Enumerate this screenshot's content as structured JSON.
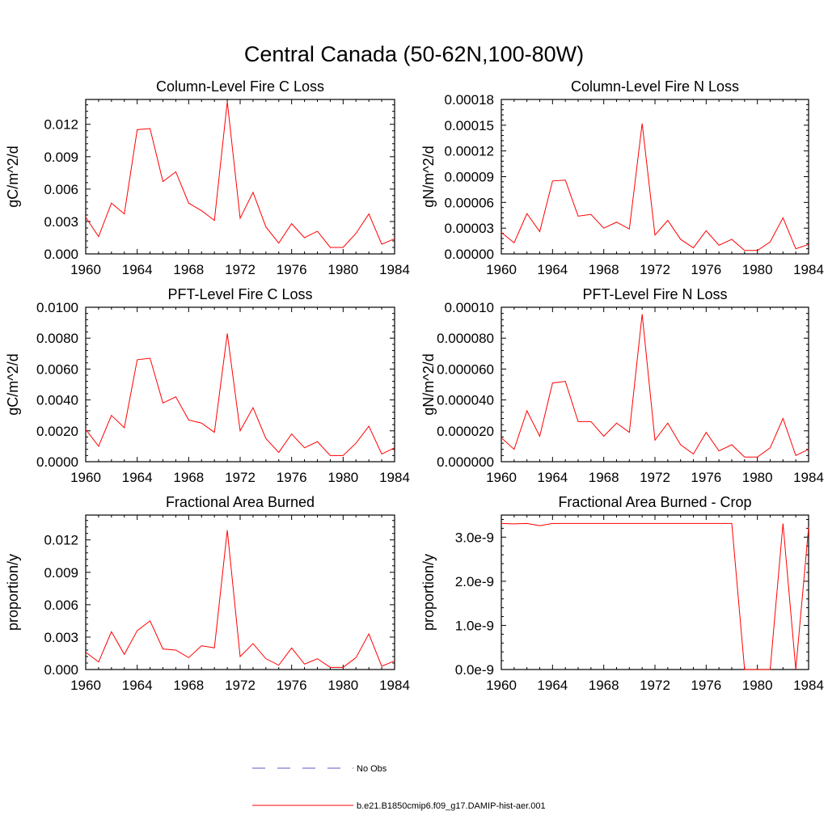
{
  "title": "Central Canada (50-62N,100-80W)",
  "colors": {
    "model": "#ff0000",
    "obs": "#5a5ac8",
    "frame": "#000000"
  },
  "legend": {
    "position": "bottom-center",
    "entries": [
      {
        "label": "No Obs",
        "style": "dashed",
        "color": "#5a5ac8"
      },
      {
        "label": "b.e21.B1850cmip6.f09_g17.DAMIP-hist-aer.001",
        "style": "solid",
        "color": "#ff0000"
      }
    ]
  },
  "chart_data": [
    {
      "type": "line",
      "title": "Column-Level Fire C Loss",
      "ylabel": "gC/m^2/d",
      "xlim": [
        1960,
        1984
      ],
      "ylim": [
        0,
        0.0143
      ],
      "xticks": [
        "1960",
        "1964",
        "1968",
        "1972",
        "1976",
        "1980",
        "1984"
      ],
      "yticks": [
        {
          "value": 0,
          "label": "0.000"
        },
        {
          "value": 0.003,
          "label": "0.003"
        },
        {
          "value": 0.006,
          "label": "0.006"
        },
        {
          "value": 0.009,
          "label": "0.009"
        },
        {
          "value": 0.012,
          "label": "0.012"
        }
      ],
      "x": [
        1960,
        1961,
        1962,
        1963,
        1964,
        1965,
        1966,
        1967,
        1968,
        1969,
        1970,
        1971,
        1972,
        1973,
        1974,
        1975,
        1976,
        1977,
        1978,
        1979,
        1980,
        1981,
        1982,
        1983,
        1984
      ],
      "series": [
        {
          "values": [
            0.0034,
            0.0016,
            0.0047,
            0.0037,
            0.0115,
            0.0116,
            0.0067,
            0.0076,
            0.0047,
            0.004,
            0.0031,
            0.0141,
            0.0033,
            0.0057,
            0.0025,
            0.001,
            0.0028,
            0.0015,
            0.0021,
            0.0006,
            0.0006,
            0.0019,
            0.0037,
            0.0009,
            0.0014
          ]
        }
      ]
    },
    {
      "type": "line",
      "title": "Column-Level Fire N Loss",
      "ylabel": "gN/m^2/d",
      "xlim": [
        1960,
        1984
      ],
      "ylim": [
        0,
        0.00018
      ],
      "xticks": [
        "1960",
        "1964",
        "1968",
        "1972",
        "1976",
        "1980",
        "1984"
      ],
      "yticks": [
        {
          "value": 0,
          "label": "0.00000"
        },
        {
          "value": 3e-05,
          "label": "0.00003"
        },
        {
          "value": 6e-05,
          "label": "0.00006"
        },
        {
          "value": 9e-05,
          "label": "0.00009"
        },
        {
          "value": 0.00012,
          "label": "0.00012"
        },
        {
          "value": 0.00015,
          "label": "0.00015"
        },
        {
          "value": 0.00018,
          "label": "0.00018"
        }
      ],
      "x": [
        1960,
        1961,
        1962,
        1963,
        1964,
        1965,
        1966,
        1967,
        1968,
        1969,
        1970,
        1971,
        1972,
        1973,
        1974,
        1975,
        1976,
        1977,
        1978,
        1979,
        1980,
        1981,
        1982,
        1983,
        1984
      ],
      "series": [
        {
          "values": [
            2.5e-05,
            1.3e-05,
            4.7e-05,
            2.6e-05,
            8.5e-05,
            8.6e-05,
            4.4e-05,
            4.6e-05,
            3e-05,
            3.7e-05,
            2.9e-05,
            0.000152,
            2.2e-05,
            3.9e-05,
            1.7e-05,
            7e-06,
            2.7e-05,
            1e-05,
            1.7e-05,
            4e-06,
            4e-06,
            1.4e-05,
            4.2e-05,
            6e-06,
            1.1e-05
          ]
        }
      ]
    },
    {
      "type": "line",
      "title": "PFT-Level Fire C Loss",
      "ylabel": "gC/m^2/d",
      "xlim": [
        1960,
        1984
      ],
      "ylim": [
        0,
        0.01
      ],
      "xticks": [
        "1960",
        "1964",
        "1968",
        "1972",
        "1976",
        "1980",
        "1984"
      ],
      "yticks": [
        {
          "value": 0,
          "label": "0.0000"
        },
        {
          "value": 0.002,
          "label": "0.0020"
        },
        {
          "value": 0.004,
          "label": "0.0040"
        },
        {
          "value": 0.006,
          "label": "0.0060"
        },
        {
          "value": 0.008,
          "label": "0.0080"
        },
        {
          "value": 0.01,
          "label": "0.0100"
        }
      ],
      "x": [
        1960,
        1961,
        1962,
        1963,
        1964,
        1965,
        1966,
        1967,
        1968,
        1969,
        1970,
        1971,
        1972,
        1973,
        1974,
        1975,
        1976,
        1977,
        1978,
        1979,
        1980,
        1981,
        1982,
        1983,
        1984
      ],
      "series": [
        {
          "values": [
            0.0021,
            0.001,
            0.003,
            0.0022,
            0.0066,
            0.0067,
            0.0038,
            0.0042,
            0.0027,
            0.0025,
            0.0019,
            0.0083,
            0.002,
            0.0035,
            0.0015,
            0.0006,
            0.0018,
            0.0009,
            0.0013,
            0.0004,
            0.0004,
            0.0012,
            0.0023,
            0.0005,
            0.0009
          ]
        }
      ]
    },
    {
      "type": "line",
      "title": "PFT-Level Fire N Loss",
      "ylabel": "gN/m^2/d",
      "xlim": [
        1960,
        1984
      ],
      "ylim": [
        0,
        0.0001
      ],
      "xticks": [
        "1960",
        "1964",
        "1968",
        "1972",
        "1976",
        "1980",
        "1984"
      ],
      "yticks": [
        {
          "value": 0,
          "label": "0.000000"
        },
        {
          "value": 2e-05,
          "label": "0.000020"
        },
        {
          "value": 4e-05,
          "label": "0.000040"
        },
        {
          "value": 6e-05,
          "label": "0.000060"
        },
        {
          "value": 8e-05,
          "label": "0.000080"
        },
        {
          "value": 0.0001,
          "label": "0.00010"
        }
      ],
      "x": [
        1960,
        1961,
        1962,
        1963,
        1964,
        1965,
        1966,
        1967,
        1968,
        1969,
        1970,
        1971,
        1972,
        1973,
        1974,
        1975,
        1976,
        1977,
        1978,
        1979,
        1980,
        1981,
        1982,
        1983,
        1984
      ],
      "series": [
        {
          "values": [
            1.55e-05,
            8e-06,
            3.3e-05,
            1.65e-05,
            5.1e-05,
            5.2e-05,
            2.6e-05,
            2.6e-05,
            1.65e-05,
            2.5e-05,
            1.9e-05,
            9.55e-05,
            1.4e-05,
            2.5e-05,
            1.1e-05,
            5e-06,
            1.9e-05,
            7e-06,
            1.1e-05,
            3e-06,
            3e-06,
            9e-06,
            2.8e-05,
            4e-06,
            8e-06
          ]
        }
      ]
    },
    {
      "type": "line",
      "title": "Fractional Area Burned",
      "ylabel": "proportion/y",
      "xlim": [
        1960,
        1984
      ],
      "ylim": [
        0,
        0.0143
      ],
      "xticks": [
        "1960",
        "1964",
        "1968",
        "1972",
        "1976",
        "1980",
        "1984"
      ],
      "yticks": [
        {
          "value": 0,
          "label": "0.000"
        },
        {
          "value": 0.003,
          "label": "0.003"
        },
        {
          "value": 0.006,
          "label": "0.006"
        },
        {
          "value": 0.009,
          "label": "0.009"
        },
        {
          "value": 0.012,
          "label": "0.012"
        }
      ],
      "x": [
        1960,
        1961,
        1962,
        1963,
        1964,
        1965,
        1966,
        1967,
        1968,
        1969,
        1970,
        1971,
        1972,
        1973,
        1974,
        1975,
        1976,
        1977,
        1978,
        1979,
        1980,
        1981,
        1982,
        1983,
        1984
      ],
      "series": [
        {
          "values": [
            0.0016,
            0.0007,
            0.0035,
            0.0014,
            0.0036,
            0.0045,
            0.0019,
            0.0018,
            0.0011,
            0.0022,
            0.002,
            0.0129,
            0.0012,
            0.0024,
            0.001,
            0.0004,
            0.002,
            0.0005,
            0.001,
            0.0002,
            0.0002,
            0.0011,
            0.0033,
            0.0003,
            0.0008
          ]
        }
      ]
    },
    {
      "type": "line",
      "title": "Fractional Area Burned - Crop",
      "ylabel": "proportion/y",
      "xlim": [
        1960,
        1984
      ],
      "ylim": [
        0,
        3.5e-09
      ],
      "xticks": [
        "1960",
        "1964",
        "1968",
        "1972",
        "1976",
        "1980",
        "1984"
      ],
      "yticks": [
        {
          "value": 0,
          "label": "0.0e-9"
        },
        {
          "value": 1e-09,
          "label": "1.0e-9"
        },
        {
          "value": 2e-09,
          "label": "2.0e-9"
        },
        {
          "value": 3e-09,
          "label": "3.0e-9"
        }
      ],
      "x": [
        1960,
        1961,
        1962,
        1963,
        1964,
        1965,
        1966,
        1967,
        1968,
        1969,
        1970,
        1971,
        1972,
        1973,
        1974,
        1975,
        1976,
        1977,
        1978,
        1979,
        1980,
        1981,
        1982,
        1983,
        1984
      ],
      "series": [
        {
          "values": [
            3.31e-09,
            3.3e-09,
            3.31e-09,
            3.26e-09,
            3.31e-09,
            3.31e-09,
            3.31e-09,
            3.31e-09,
            3.31e-09,
            3.31e-09,
            3.31e-09,
            3.31e-09,
            3.31e-09,
            3.31e-09,
            3.31e-09,
            3.31e-09,
            3.31e-09,
            3.31e-09,
            3.31e-09,
            0,
            0,
            0,
            3.31e-09,
            0,
            3.22e-09
          ]
        }
      ]
    }
  ]
}
